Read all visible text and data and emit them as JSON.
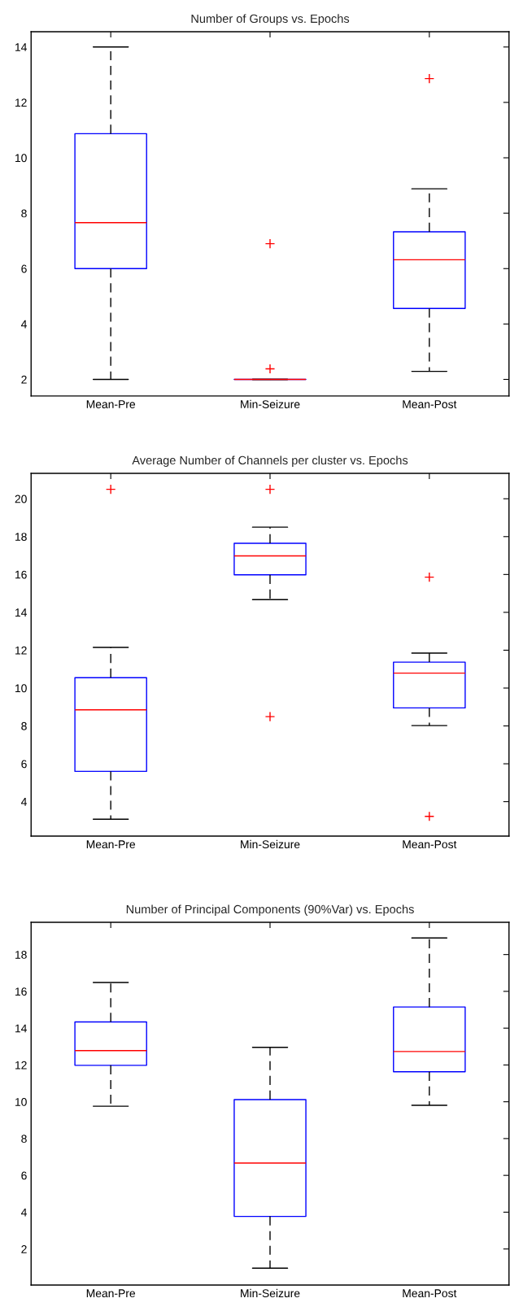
{
  "chart_data": [
    {
      "type": "box",
      "title": "Number of Groups vs. Epochs",
      "categories": [
        "Mean-Pre",
        "Min-Seizure",
        "Mean-Post"
      ],
      "ylim": [
        1.4,
        14.55
      ],
      "yticks": [
        2,
        4,
        6,
        8,
        10,
        12,
        14
      ],
      "grid": false,
      "legend": false,
      "boxes": [
        {
          "low": 2,
          "q1": 6.0,
          "median": 7.66,
          "q3": 10.87,
          "high": 14
        },
        {
          "low": 2,
          "q1": 2,
          "median": 2,
          "q3": 2,
          "high": 2,
          "outliers": [
            6.9,
            2.38
          ]
        },
        {
          "low": 2.29,
          "q1": 4.56,
          "median": 6.32,
          "q3": 7.33,
          "high": 8.88,
          "outliers": [
            12.86
          ]
        }
      ]
    },
    {
      "type": "box",
      "title": "Average Number of Channels per cluster vs. Epochs",
      "categories": [
        "Mean-Pre",
        "Min-Seizure",
        "Mean-Post"
      ],
      "ylim": [
        2.18,
        21.34
      ],
      "yticks": [
        4,
        6,
        8,
        10,
        12,
        14,
        16,
        18,
        20
      ],
      "grid": false,
      "legend": false,
      "boxes": [
        {
          "low": 3.07,
          "q1": 5.6,
          "median": 8.85,
          "q3": 10.55,
          "high": 12.15,
          "outliers": [
            20.5
          ]
        },
        {
          "low": 14.67,
          "q1": 15.98,
          "median": 16.98,
          "q3": 17.65,
          "high": 18.5,
          "outliers": [
            20.5,
            8.49
          ]
        },
        {
          "low": 8.02,
          "q1": 8.95,
          "median": 10.79,
          "q3": 11.37,
          "high": 11.85,
          "outliers": [
            15.86,
            3.22
          ]
        }
      ]
    },
    {
      "type": "box",
      "title": "Number of Principal Components (90%Var) vs. Epochs",
      "categories": [
        "Mean-Pre",
        "Min-Seizure",
        "Mean-Post"
      ],
      "ylim": [
        0.04,
        19.75
      ],
      "yticks": [
        2,
        4,
        6,
        8,
        10,
        12,
        14,
        16,
        18
      ],
      "grid": false,
      "legend": false,
      "boxes": [
        {
          "low": 9.76,
          "q1": 11.98,
          "median": 12.78,
          "q3": 14.34,
          "high": 16.48
        },
        {
          "low": 0.96,
          "q1": 3.77,
          "median": 6.67,
          "q3": 10.12,
          "high": 12.96
        },
        {
          "low": 9.81,
          "q1": 11.63,
          "median": 12.73,
          "q3": 15.15,
          "high": 18.9
        }
      ]
    }
  ]
}
